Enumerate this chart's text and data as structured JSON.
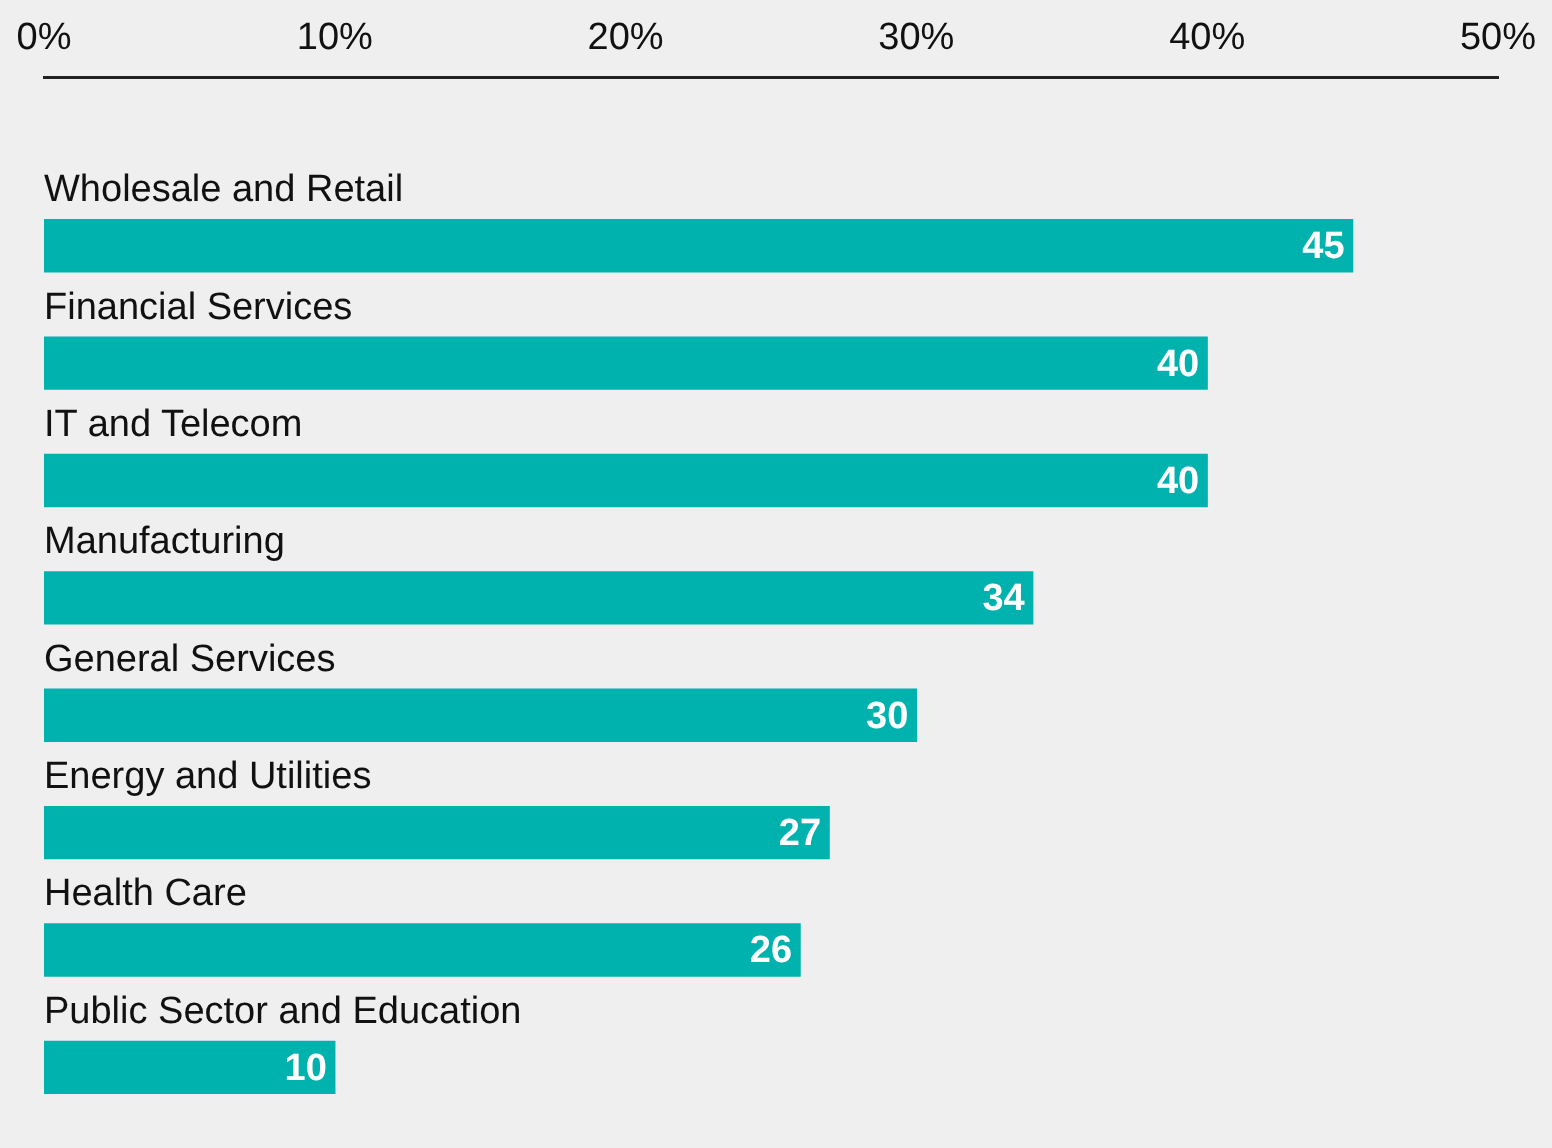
{
  "chart_data": {
    "type": "bar",
    "orientation": "horizontal",
    "categories": [
      "Wholesale and Retail",
      "Financial Services",
      "IT and Telecom",
      "Manufacturing",
      "General Services",
      "Energy and Utilities",
      "Health Care",
      "Public Sector and Education"
    ],
    "values": [
      45,
      40,
      40,
      34,
      30,
      27,
      26,
      10
    ],
    "color": "#00b2ad",
    "xlim": [
      0,
      50
    ],
    "xticks": [
      {
        "value": 0,
        "label": "0%"
      },
      {
        "value": 10,
        "label": "10%"
      },
      {
        "value": 20,
        "label": "20%"
      },
      {
        "value": 30,
        "label": "30%"
      },
      {
        "value": 40,
        "label": "40%"
      },
      {
        "value": 50,
        "label": "50%"
      }
    ],
    "data_labels": true,
    "grid": false
  }
}
